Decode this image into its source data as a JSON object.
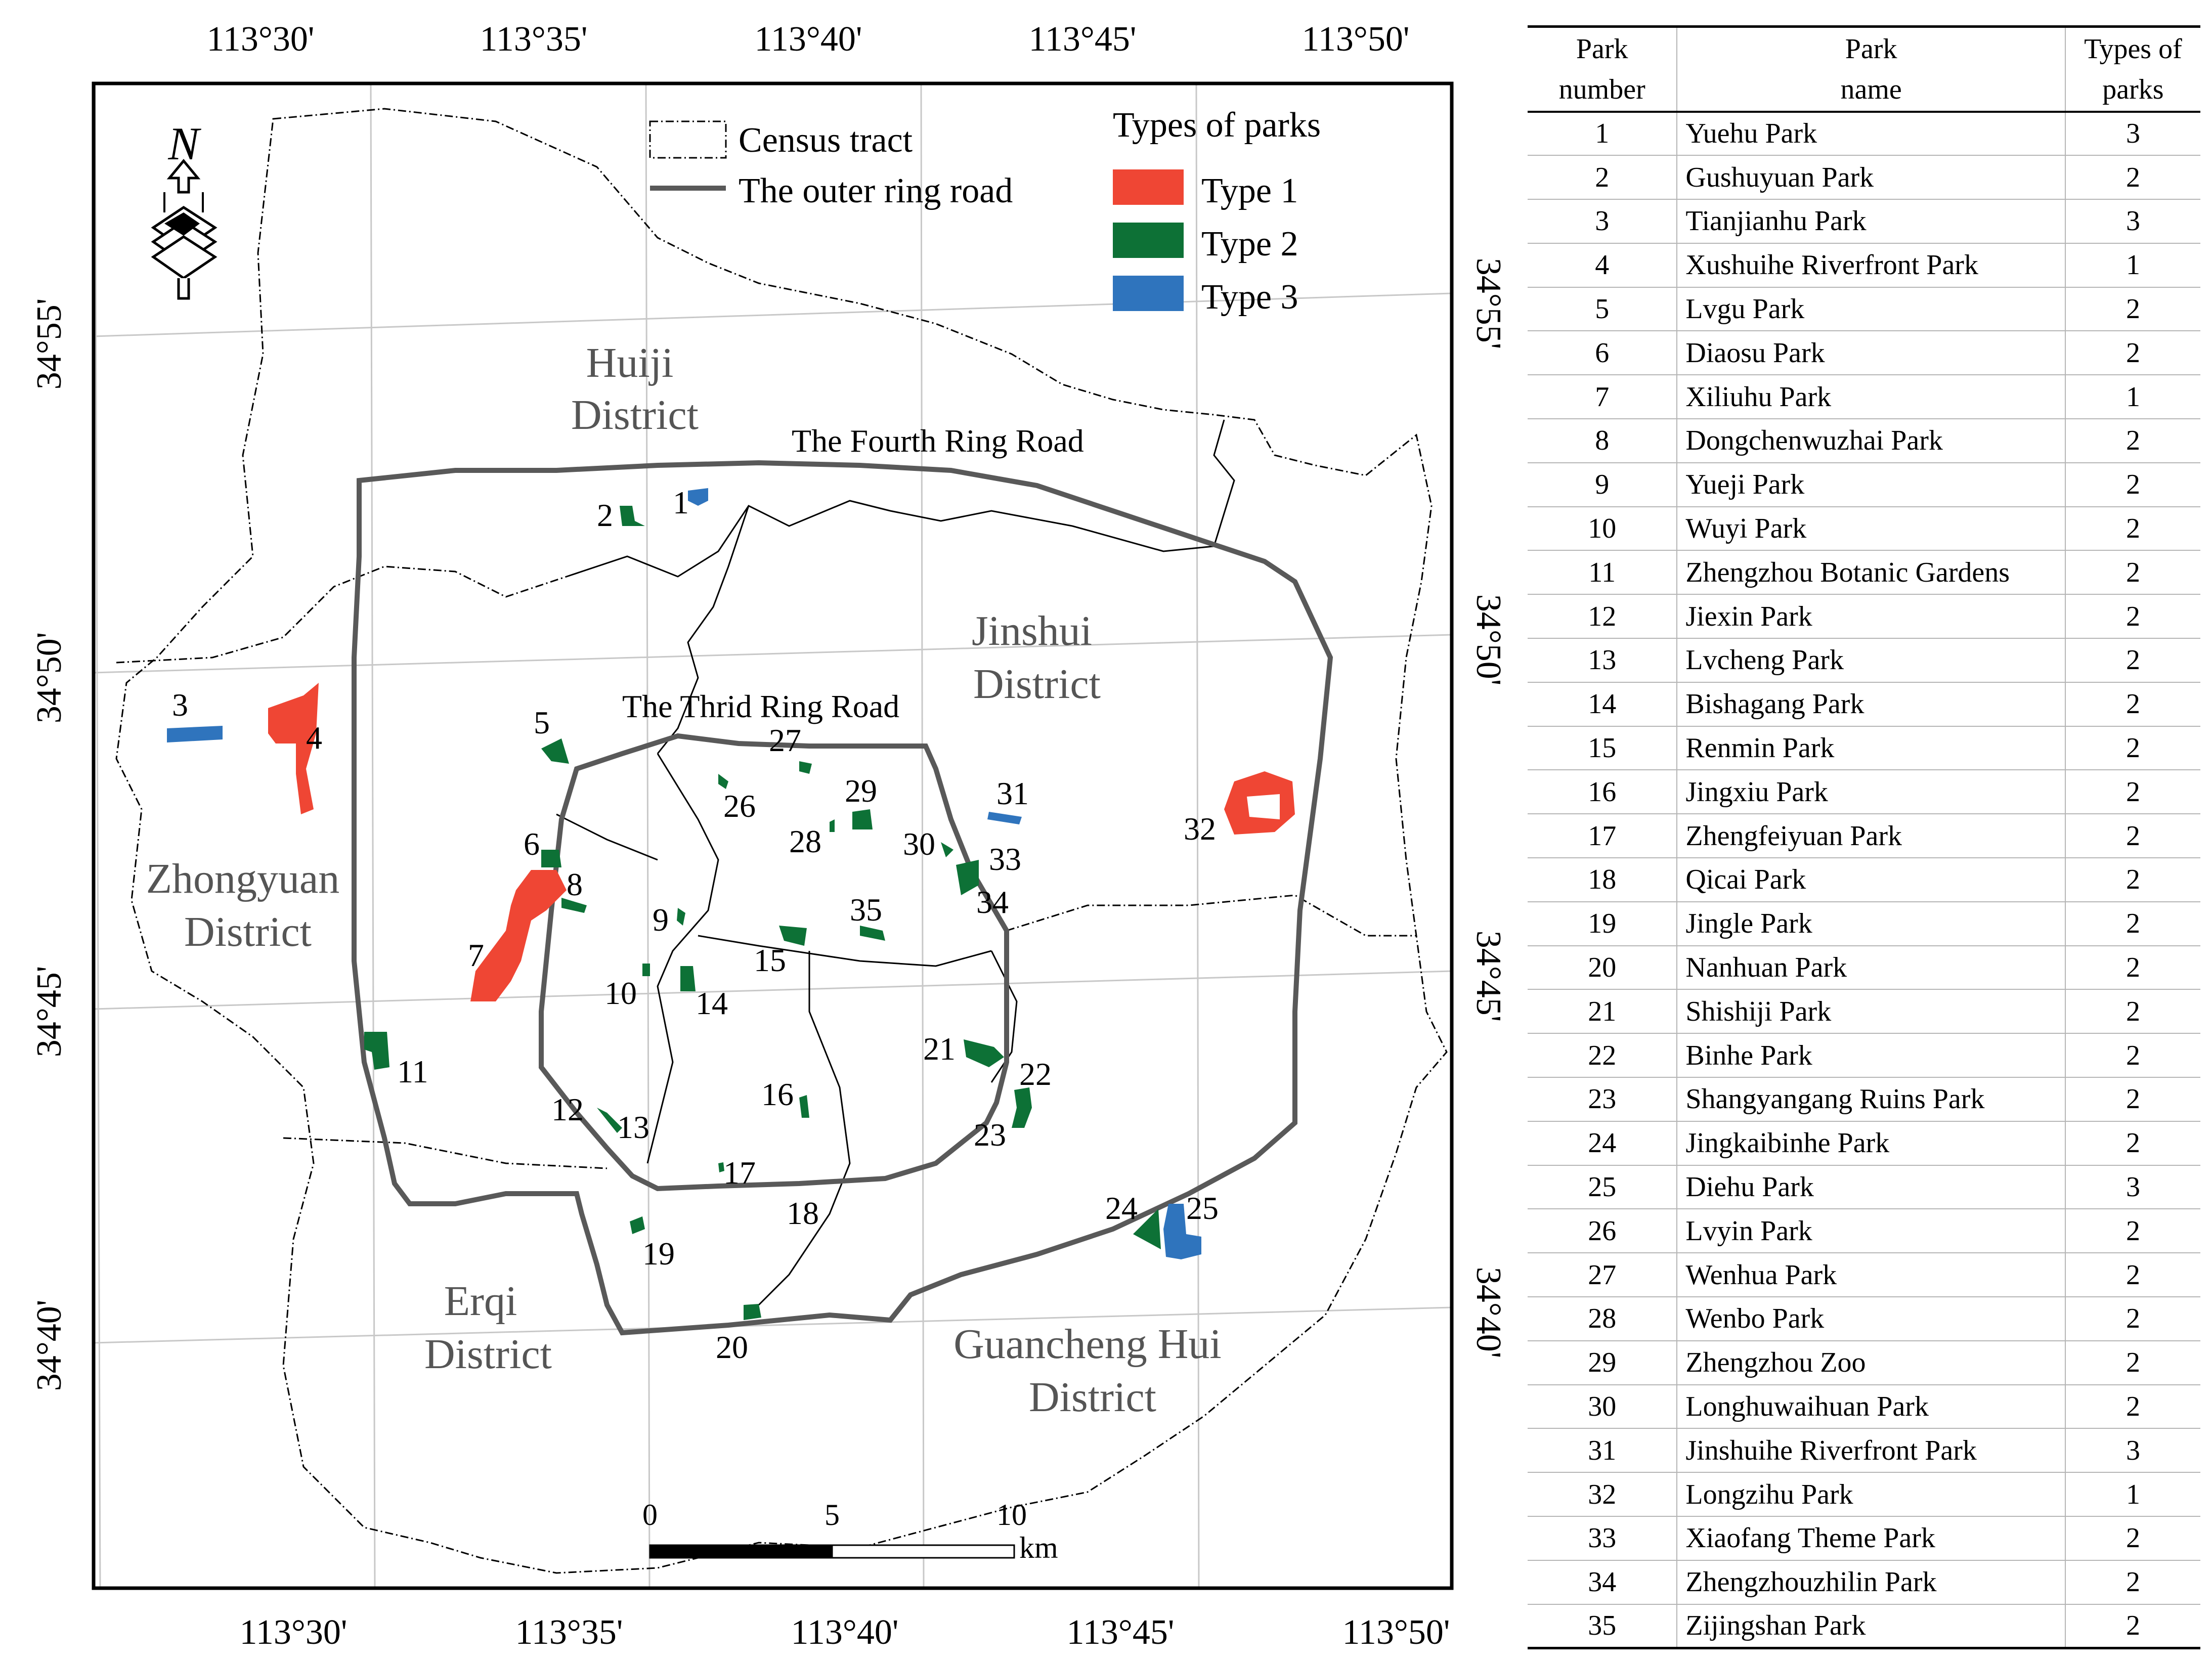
{
  "map": {
    "top_longitudes": [
      "113°30'",
      "113°35'",
      "113°40'",
      "113°45'",
      "113°50'"
    ],
    "bottom_longitudes": [
      "113°30'",
      "113°35'",
      "113°40'",
      "113°45'",
      "113°50'"
    ],
    "left_latitudes": [
      "34°55'",
      "34°50'",
      "34°45'",
      "34°40'"
    ],
    "right_latitudes": [
      "34°55'",
      "34°50'",
      "34°45'",
      "34°40'"
    ],
    "districts": {
      "huiji": [
        "Huiji",
        "District"
      ],
      "jinshui": [
        "Jinshui",
        "District"
      ],
      "zhongyuan": [
        "Zhongyuan",
        "District"
      ],
      "erqi": [
        "Erqi",
        "District"
      ],
      "guancheng": [
        "Guancheng Hui",
        "District"
      ]
    },
    "roads": {
      "fourth_ring": "The Fourth Ring Road",
      "third_ring": "The Thrid Ring Road"
    },
    "legend": {
      "census_tract": "Census tract",
      "outer_ring": "The outer ring road",
      "types_title": "Types of parks",
      "type1": "Type 1",
      "type2": "Type 2",
      "type3": "Type 3"
    },
    "colors": {
      "type1": "#ef4634",
      "type2": "#0d7136",
      "type3": "#2f74bd",
      "ring_road": "#595959",
      "grid": "#c8c8c8"
    },
    "scale": {
      "labels": [
        "0",
        "5",
        "10"
      ],
      "unit": "km"
    },
    "north_arrow": {
      "label": "N",
      "icon": "north-arrow-icon"
    },
    "park_labels": [
      "1",
      "2",
      "3",
      "4",
      "5",
      "6",
      "7",
      "8",
      "9",
      "10",
      "11",
      "12",
      "13",
      "14",
      "15",
      "16",
      "17",
      "18",
      "19",
      "20",
      "21",
      "22",
      "23",
      "24",
      "25",
      "26",
      "27",
      "28",
      "29",
      "30",
      "31",
      "32",
      "33",
      "34",
      "35"
    ]
  },
  "table": {
    "headers": {
      "number": [
        "Park",
        "number"
      ],
      "name": [
        "Park",
        "name"
      ],
      "type": [
        "Types of",
        "parks"
      ]
    },
    "rows": [
      {
        "number": "1",
        "name": "Yuehu Park",
        "type": "3"
      },
      {
        "number": "2",
        "name": "Gushuyuan Park",
        "type": "2"
      },
      {
        "number": "3",
        "name": "Tianjianhu Park",
        "type": "3"
      },
      {
        "number": "4",
        "name": "Xushuihe Riverfront Park",
        "type": "1"
      },
      {
        "number": "5",
        "name": "Lvgu Park",
        "type": "2"
      },
      {
        "number": "6",
        "name": "Diaosu Park",
        "type": "2"
      },
      {
        "number": "7",
        "name": "Xiliuhu Park",
        "type": "1"
      },
      {
        "number": "8",
        "name": "Dongchenwuzhai Park",
        "type": "2"
      },
      {
        "number": "9",
        "name": "Yueji Park",
        "type": "2"
      },
      {
        "number": "10",
        "name": "Wuyi Park",
        "type": "2"
      },
      {
        "number": "11",
        "name": "Zhengzhou Botanic Gardens",
        "type": "2"
      },
      {
        "number": "12",
        "name": "Jiexin Park",
        "type": "2"
      },
      {
        "number": "13",
        "name": "Lvcheng Park",
        "type": "2"
      },
      {
        "number": "14",
        "name": "Bishagang Park",
        "type": "2"
      },
      {
        "number": "15",
        "name": "Renmin Park",
        "type": "2"
      },
      {
        "number": "16",
        "name": "Jingxiu Park",
        "type": "2"
      },
      {
        "number": "17",
        "name": "Zhengfeiyuan Park",
        "type": "2"
      },
      {
        "number": "18",
        "name": "Qicai Park",
        "type": "2"
      },
      {
        "number": "19",
        "name": "Jingle Park",
        "type": "2"
      },
      {
        "number": "20",
        "name": "Nanhuan Park",
        "type": "2"
      },
      {
        "number": "21",
        "name": "Shishiji Park",
        "type": "2"
      },
      {
        "number": "22",
        "name": "Binhe Park",
        "type": "2"
      },
      {
        "number": "23",
        "name": "Shangyangang Ruins Park",
        "type": "2"
      },
      {
        "number": "24",
        "name": "Jingkaibinhe Park",
        "type": "2"
      },
      {
        "number": "25",
        "name": "Diehu Park",
        "type": "3"
      },
      {
        "number": "26",
        "name": "Lvyin Park",
        "type": "2"
      },
      {
        "number": "27",
        "name": "Wenhua Park",
        "type": "2"
      },
      {
        "number": "28",
        "name": "Wenbo Park",
        "type": "2"
      },
      {
        "number": "29",
        "name": "Zhengzhou Zoo",
        "type": "2"
      },
      {
        "number": "30",
        "name": "Longhuwaihuan Park",
        "type": "2"
      },
      {
        "number": "31",
        "name": "Jinshuihe Riverfront Park",
        "type": "3"
      },
      {
        "number": "32",
        "name": "Longzihu Park",
        "type": "1"
      },
      {
        "number": "33",
        "name": "Xiaofang Theme Park",
        "type": "2"
      },
      {
        "number": "34",
        "name": "Zhengzhouzhilin Park",
        "type": "2"
      },
      {
        "number": "35",
        "name": "Zijingshan Park",
        "type": "2"
      }
    ]
  }
}
